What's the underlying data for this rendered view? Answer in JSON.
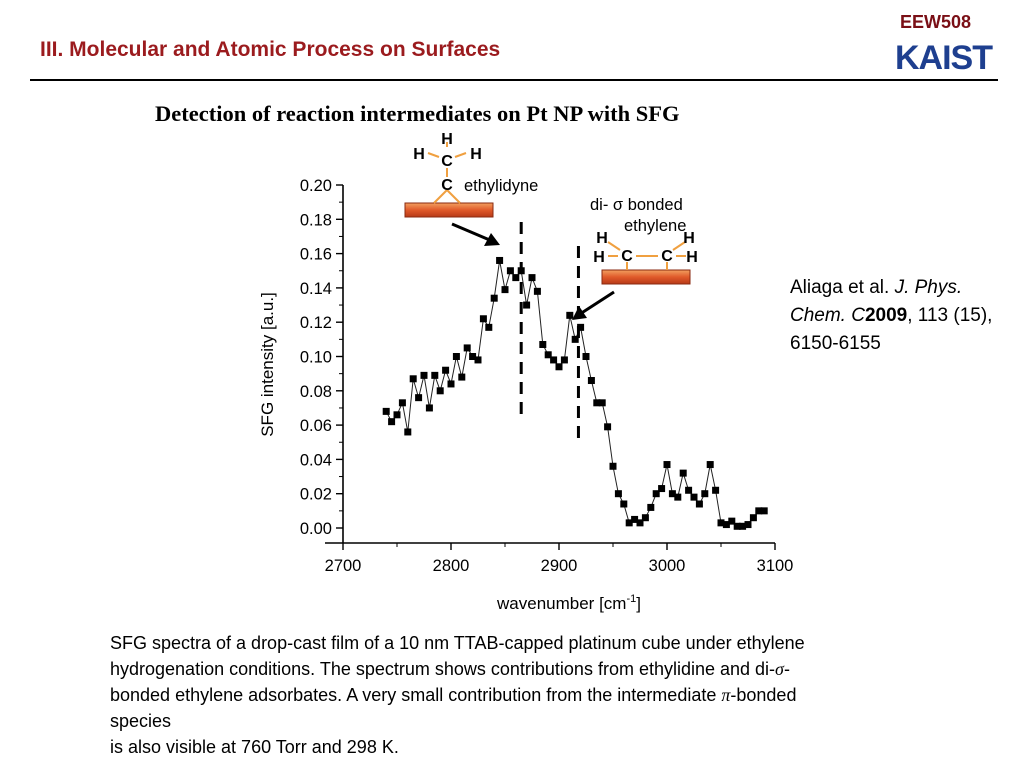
{
  "header": {
    "course_code": "EEW508",
    "logo_text": "KAIST",
    "section_title": "III. Molecular and Atomic Process on Surfaces"
  },
  "slide_title": "Detection of reaction intermediates on Pt NP with SFG",
  "citation": {
    "authors": "Aliaga et al.",
    "journal": "J. Phys. Chem. C",
    "year": "2009",
    "details": ", 113 (15), 6150-6155"
  },
  "caption": {
    "line1": "SFG spectra of a drop-cast film of a 10 nm TTAB-capped platinum cube under ethylene",
    "line2_a": "hydrogenation conditions. The spectrum shows contributions from ethylidine and di-",
    "sigma": "σ",
    "line2_b": "-",
    "line3_a": "bonded ethylene adsorbates. A very small contribution from the intermediate ",
    "pi": "π",
    "line3_b": "-bonded",
    "line4": "species",
    "line5": "is also visible at 760 Torr and 298 K."
  },
  "chart_data": {
    "type": "scatter",
    "xlabel": "wavenumber [cm",
    "xlabel_sup": "-1",
    "xlabel_end": "]",
    "ylabel": "SFG intensity [a.u.]",
    "xlim": [
      2700,
      3100
    ],
    "ylim": [
      0.0,
      0.2
    ],
    "xticks": [
      "2700",
      "2800",
      "2900",
      "3000",
      "3100"
    ],
    "yticks": [
      "0.00",
      "0.02",
      "0.04",
      "0.06",
      "0.08",
      "0.10",
      "0.12",
      "0.14",
      "0.16",
      "0.18",
      "0.20"
    ],
    "x": [
      2740,
      2745,
      2750,
      2755,
      2760,
      2765,
      2770,
      2775,
      2780,
      2785,
      2790,
      2795,
      2800,
      2805,
      2810,
      2815,
      2820,
      2825,
      2830,
      2835,
      2840,
      2845,
      2850,
      2855,
      2860,
      2865,
      2870,
      2875,
      2880,
      2885,
      2890,
      2895,
      2900,
      2905,
      2910,
      2915,
      2920,
      2925,
      2930,
      2935,
      2940,
      2945,
      2950,
      2955,
      2960,
      2965,
      2970,
      2975,
      2980,
      2985,
      2990,
      2995,
      3000,
      3005,
      3010,
      3015,
      3020,
      3025,
      3030,
      3035,
      3040,
      3045,
      3050,
      3055,
      3060,
      3065,
      3070,
      3075,
      3080,
      3085,
      3090
    ],
    "y": [
      0.068,
      0.062,
      0.066,
      0.073,
      0.056,
      0.087,
      0.076,
      0.089,
      0.07,
      0.089,
      0.08,
      0.092,
      0.084,
      0.1,
      0.088,
      0.105,
      0.1,
      0.098,
      0.122,
      0.117,
      0.134,
      0.156,
      0.139,
      0.15,
      0.146,
      0.15,
      0.13,
      0.146,
      0.138,
      0.107,
      0.101,
      0.098,
      0.094,
      0.098,
      0.124,
      0.11,
      0.117,
      0.1,
      0.086,
      0.073,
      0.073,
      0.059,
      0.036,
      0.02,
      0.014,
      0.003,
      0.005,
      0.003,
      0.006,
      0.012,
      0.02,
      0.023,
      0.037,
      0.02,
      0.018,
      0.032,
      0.022,
      0.018,
      0.014,
      0.02,
      0.037,
      0.022,
      0.003,
      0.002,
      0.004,
      0.001,
      0.001,
      0.002,
      0.006,
      0.01,
      0.01
    ],
    "annotations": {
      "ethylidyne_label": "ethylidyne",
      "ethylidyne_line_x": 2865,
      "di_sigma_label_1": "di- σ bonded",
      "di_sigma_label_2": "ethylene",
      "di_sigma_line_x": 2918,
      "atom_h": "H",
      "atom_c": "C"
    }
  },
  "colors": {
    "section_title": "#9b1b1e",
    "course_code": "#7a0f16",
    "logo": "#1e3f8f",
    "surface_fill": "#e05a2a",
    "bond": "#f0a040"
  }
}
